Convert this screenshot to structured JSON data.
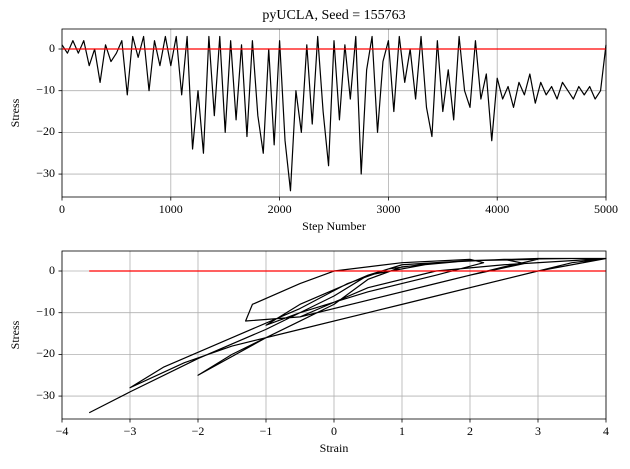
{
  "chart_data": [
    {
      "type": "line",
      "title": "pyUCLA, Seed = 155763",
      "xlabel": "Step Number",
      "ylabel": "Stress",
      "xlim": [
        0,
        5000
      ],
      "xticks": [
        0,
        1000,
        2000,
        3000,
        4000,
        5000
      ],
      "ylim": [
        -35.5,
        4.8
      ],
      "yticks": [
        {
          "value": -30,
          "label": "−30"
        },
        {
          "value": -20,
          "label": "−20"
        },
        {
          "value": -10,
          "label": "−10"
        },
        0
      ],
      "grid": true,
      "series": [
        {
          "color": "#000000",
          "x": [
            0,
            50,
            100,
            150,
            200,
            250,
            300,
            350,
            400,
            450,
            500,
            550,
            600,
            650,
            700,
            750,
            800,
            850,
            900,
            950,
            1000,
            1050,
            1100,
            1150,
            1200,
            1250,
            1300,
            1350,
            1400,
            1450,
            1500,
            1550,
            1600,
            1650,
            1700,
            1750,
            1800,
            1850,
            1900,
            1950,
            2000,
            2050,
            2100,
            2150,
            2200,
            2250,
            2300,
            2350,
            2400,
            2450,
            2500,
            2550,
            2600,
            2650,
            2700,
            2750,
            2800,
            2850,
            2900,
            2950,
            3000,
            3050,
            3100,
            3150,
            3200,
            3250,
            3300,
            3350,
            3400,
            3450,
            3500,
            3550,
            3600,
            3650,
            3700,
            3750,
            3800,
            3850,
            3900,
            3950,
            4000,
            4050,
            4100,
            4150,
            4200,
            4250,
            4300,
            4350,
            4400,
            4450,
            4500,
            4550,
            4600,
            4650,
            4700,
            4750,
            4800,
            4850,
            4900,
            4950,
            5000
          ],
          "values": [
            1,
            -1,
            2,
            -1,
            2,
            -4,
            0,
            -8,
            1,
            -3,
            -1,
            2,
            -11,
            3,
            -2,
            3,
            -10,
            2,
            -4,
            3,
            -4,
            3,
            -11,
            3,
            -24,
            -10,
            -25,
            3,
            -16,
            3,
            -20,
            2,
            -17,
            1,
            -21,
            2,
            -16,
            -25,
            0,
            -23,
            2,
            -22,
            -34,
            -10,
            -20,
            1,
            -18,
            3,
            -15,
            -28,
            2,
            -17,
            1,
            -12,
            3,
            -30,
            -5,
            3,
            -20,
            -3,
            2,
            -15,
            3,
            -8,
            0,
            -12,
            3,
            -14,
            -21,
            2,
            -15,
            -5,
            -17,
            3,
            -10,
            -14,
            2,
            -12,
            -6,
            -22,
            -7,
            -12,
            -9,
            -14,
            -8,
            -11,
            -6,
            -13,
            -8,
            -11,
            -9,
            -12,
            -8,
            -10,
            -12,
            -9,
            -11,
            -9,
            -12,
            -10,
            1
          ]
        },
        {
          "color": "#ff0000",
          "x": [
            0,
            5000
          ],
          "values": [
            0,
            0
          ]
        }
      ]
    },
    {
      "type": "line",
      "xlabel": "Strain",
      "ylabel": "Stress",
      "xlim": [
        -4,
        4
      ],
      "xticks": [
        {
          "value": -4,
          "label": "−4"
        },
        {
          "value": -3,
          "label": "−3"
        },
        {
          "value": -2,
          "label": "−2"
        },
        {
          "value": -1,
          "label": "−1"
        },
        0,
        1,
        2,
        3,
        4
      ],
      "ylim": [
        -35.5,
        4.8
      ],
      "yticks": [
        {
          "value": -30,
          "label": "−30"
        },
        {
          "value": -20,
          "label": "−20"
        },
        {
          "value": -10,
          "label": "−10"
        },
        0
      ],
      "grid": true,
      "series": [
        {
          "color": "#000000",
          "x": [
            -3.6,
            -3.0,
            -2,
            -1,
            0,
            0.5,
            1,
            2,
            3,
            4,
            3.5,
            2.5,
            1.5,
            0.5,
            -0.5,
            -1.5,
            -2.2,
            -3,
            -2.5,
            -1.5,
            -0.5,
            0.2,
            0.8,
            1.5,
            2.5,
            3.5,
            4,
            3,
            2,
            1,
            0,
            -1,
            -2,
            -1.5,
            -0.5,
            0,
            0.5,
            1,
            2,
            3,
            2.5,
            1.5,
            0.5,
            -0.5,
            -1.3,
            -1.2,
            -0.5,
            0,
            1,
            2,
            2.2,
            1.5,
            0.5,
            -0.5,
            -1,
            -0.5,
            0.5,
            1.5,
            2.5,
            2.8,
            2,
            1,
            0,
            -0.5,
            0.5,
            1.5,
            2.5,
            3.5,
            4
          ],
          "values": [
            -34,
            -29,
            -21,
            -14,
            -6,
            -1,
            1.5,
            2.5,
            3,
            3,
            2,
            -2,
            -6,
            -10,
            -14,
            -18,
            -22,
            -28,
            -23,
            -16,
            -9,
            -3,
            0.5,
            2,
            2.8,
            3,
            3,
            0,
            -4,
            -8,
            -12,
            -16,
            -25,
            -20,
            -12,
            -8,
            -2,
            1,
            2.5,
            2.8,
            1,
            -3,
            -7,
            -11,
            -12,
            -8,
            -3,
            0,
            2,
            2.8,
            2,
            -1,
            -5,
            -10,
            -13,
            -8,
            -1,
            2,
            2.8,
            1.8,
            -1,
            -5,
            -9,
            -11,
            -4,
            0,
            1.5,
            2.5,
            3
          ]
        },
        {
          "color": "#ff0000",
          "x": [
            -3.6,
            4
          ],
          "values": [
            0,
            0
          ]
        }
      ]
    }
  ]
}
